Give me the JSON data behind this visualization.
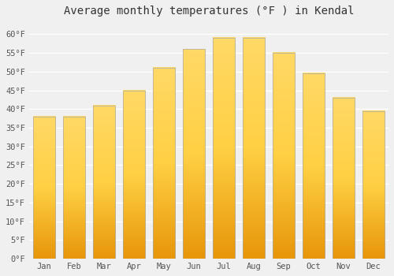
{
  "title": "Average monthly temperatures (°F ) in Kendal",
  "months": [
    "Jan",
    "Feb",
    "Mar",
    "Apr",
    "May",
    "Jun",
    "Jul",
    "Aug",
    "Sep",
    "Oct",
    "Nov",
    "Dec"
  ],
  "values": [
    38,
    38,
    41,
    45,
    51,
    56,
    59,
    59,
    55,
    49.5,
    43,
    39.5
  ],
  "bar_color_top": "#FFD966",
  "bar_color_bottom": "#E8960A",
  "bar_edge_color": "#aaaaaa",
  "ylim": [
    0,
    63
  ],
  "yticks": [
    0,
    5,
    10,
    15,
    20,
    25,
    30,
    35,
    40,
    45,
    50,
    55,
    60
  ],
  "ytick_labels": [
    "0°F",
    "5°F",
    "10°F",
    "15°F",
    "20°F",
    "25°F",
    "30°F",
    "35°F",
    "40°F",
    "45°F",
    "50°F",
    "55°F",
    "60°F"
  ],
  "background_color": "#f0f0f0",
  "grid_color": "#ffffff",
  "title_fontsize": 10,
  "tick_fontsize": 7.5,
  "font_family": "monospace",
  "bar_width": 0.75
}
